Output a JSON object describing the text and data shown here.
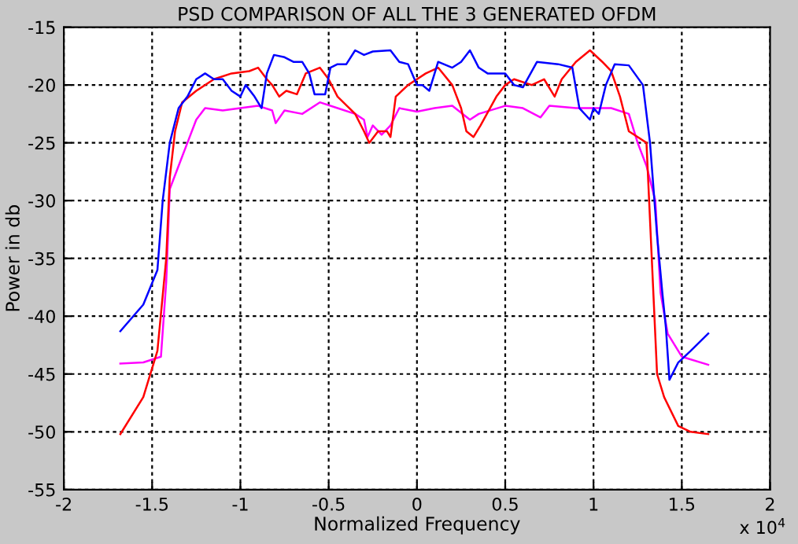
{
  "chart_data": {
    "type": "line",
    "title": "PSD COMPARISON OF ALL THE 3 GENERATED OFDM",
    "xlabel": "Normalized Frequency",
    "ylabel": "Power in db",
    "annotations": [
      "x 10$^{4}$"
    ],
    "xlim": [
      -2,
      2
    ],
    "xticks": [
      -2,
      -1.5,
      -1,
      -0.5,
      0,
      0.5,
      1,
      1.5,
      2
    ],
    "ylim": [
      -55,
      -15
    ],
    "yticks": [
      -55,
      -50,
      -45,
      -40,
      -35,
      -30,
      -25,
      -20,
      -15
    ],
    "grid": true,
    "legend": false,
    "marker": "none",
    "line_style": "solid",
    "series": [
      {
        "color": "#0000ff",
        "x": [
          -1.68,
          -1.55,
          -1.47,
          -1.44,
          -1.4,
          -1.35,
          -1.3,
          -1.25,
          -1.2,
          -1.15,
          -1.1,
          -1.05,
          -1.0,
          -0.97,
          -0.92,
          -0.88,
          -0.85,
          -0.81,
          -0.75,
          -0.7,
          -0.65,
          -0.61,
          -0.58,
          -0.52,
          -0.49,
          -0.45,
          -0.4,
          -0.35,
          -0.3,
          -0.25,
          -0.15,
          -0.1,
          -0.05,
          0,
          0.03,
          0.07,
          0.12,
          0.2,
          0.25,
          0.3,
          0.35,
          0.4,
          0.5,
          0.55,
          0.6,
          0.68,
          0.8,
          0.88,
          0.92,
          0.98,
          1.0,
          1.03,
          1.07,
          1.12,
          1.2,
          1.28,
          1.32,
          1.36,
          1.39,
          1.41,
          1.43,
          1.48,
          1.55,
          1.65
        ],
        "values": [
          -41.3,
          -39,
          -36,
          -30,
          -25,
          -22,
          -21,
          -19.5,
          -19,
          -19.5,
          -19.5,
          -20.5,
          -21,
          -20,
          -21,
          -22,
          -19,
          -17.4,
          -17.6,
          -18,
          -18,
          -19,
          -20.8,
          -20.8,
          -18.5,
          -18.2,
          -18.2,
          -17,
          -17.4,
          -17.1,
          -17,
          -18,
          -18.2,
          -20,
          -20,
          -20.5,
          -18,
          -18.5,
          -18,
          -17,
          -18.5,
          -19,
          -19,
          -20,
          -20.2,
          -18,
          -18.2,
          -18.5,
          -22,
          -23,
          -22,
          -22.5,
          -20,
          -18.2,
          -18.3,
          -20,
          -25,
          -33,
          -38,
          -41,
          -45.5,
          -44,
          -43,
          -41.5
        ]
      },
      {
        "color": "#ff0000",
        "x": [
          -1.68,
          -1.55,
          -1.47,
          -1.42,
          -1.4,
          -1.37,
          -1.33,
          -1.25,
          -1.15,
          -1.05,
          -0.95,
          -0.9,
          -0.85,
          -0.82,
          -0.78,
          -0.74,
          -0.68,
          -0.63,
          -0.55,
          -0.5,
          -0.45,
          -0.35,
          -0.3,
          -0.27,
          -0.22,
          -0.17,
          -0.15,
          -0.12,
          -0.05,
          0,
          0.05,
          0.12,
          0.2,
          0.25,
          0.28,
          0.32,
          0.36,
          0.45,
          0.5,
          0.55,
          0.65,
          0.72,
          0.78,
          0.82,
          0.9,
          0.98,
          1.05,
          1.1,
          1.15,
          1.2,
          1.25,
          1.3,
          1.33,
          1.36,
          1.4,
          1.48,
          1.55,
          1.65
        ],
        "values": [
          -50.2,
          -47,
          -43,
          -35,
          -28,
          -24,
          -21.5,
          -20.5,
          -19.5,
          -19,
          -18.8,
          -18.5,
          -19.5,
          -20,
          -21,
          -20.5,
          -20.8,
          -19,
          -18.5,
          -19.5,
          -21,
          -22.5,
          -24,
          -25,
          -24,
          -24,
          -24.5,
          -21,
          -20,
          -19.5,
          -19,
          -18.5,
          -20,
          -22,
          -24,
          -24.5,
          -23.5,
          -21,
          -20,
          -19.5,
          -20,
          -19.5,
          -21,
          -19.5,
          -18,
          -17,
          -18,
          -18.8,
          -21,
          -24,
          -24.5,
          -25,
          -35,
          -45,
          -47,
          -49.5,
          -50,
          -50.2
        ]
      },
      {
        "color": "#ff00ff",
        "x": [
          -1.68,
          -1.55,
          -1.45,
          -1.42,
          -1.4,
          -1.35,
          -1.3,
          -1.25,
          -1.2,
          -1.1,
          -1.0,
          -0.9,
          -0.82,
          -0.8,
          -0.75,
          -0.65,
          -0.55,
          -0.45,
          -0.35,
          -0.3,
          -0.28,
          -0.25,
          -0.2,
          -0.15,
          -0.1,
          0,
          0.1,
          0.2,
          0.3,
          0.35,
          0.5,
          0.6,
          0.7,
          0.75,
          0.9,
          1.0,
          1.1,
          1.2,
          1.25,
          1.3,
          1.35,
          1.38,
          1.42,
          1.5,
          1.65
        ],
        "values": [
          -44.1,
          -44,
          -43.5,
          -37,
          -29,
          -27,
          -25,
          -23,
          -22,
          -22.2,
          -22,
          -21.8,
          -22.2,
          -23.3,
          -22.2,
          -22.5,
          -21.5,
          -22,
          -22.5,
          -23,
          -24.5,
          -23.5,
          -24.3,
          -23.5,
          -22,
          -22.3,
          -22,
          -21.8,
          -23,
          -22.5,
          -21.8,
          -22,
          -22.8,
          -21.8,
          -22,
          -22,
          -22,
          -22.5,
          -25,
          -27,
          -30,
          -38,
          -41.5,
          -43.5,
          -44.2
        ]
      }
    ]
  }
}
